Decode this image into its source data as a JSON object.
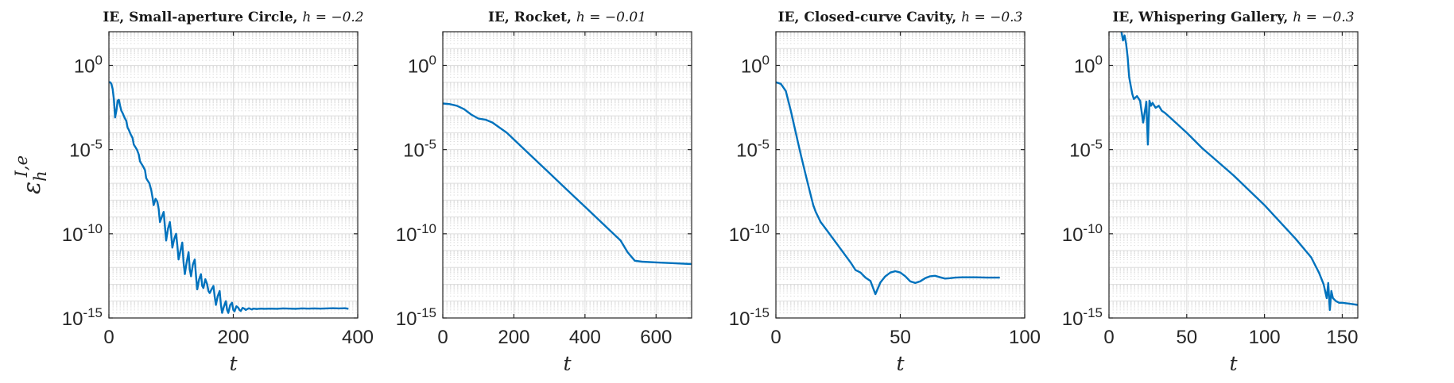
{
  "chart_data": [
    {
      "type": "line",
      "title": "IE, Small-aperture Circle, ",
      "title_math": "h = −0.2",
      "xlabel": "t",
      "ylabel": "ε",
      "ylabel_sup": "I,e",
      "ylabel_sub": "h",
      "yscale": "log",
      "grid": true,
      "xlim": [
        0,
        400
      ],
      "ylim": [
        1e-15,
        100
      ],
      "xticks": [
        0,
        200,
        400
      ],
      "xtick_labels": [
        "0",
        "200",
        "400"
      ],
      "yticks": [
        1,
        1e-05,
        1e-10,
        1e-15
      ],
      "ytick_labels": [
        {
          "base": "10",
          "exp": "0"
        },
        {
          "base": "10",
          "exp": "-5"
        },
        {
          "base": "10",
          "exp": "-10"
        },
        {
          "base": "10",
          "exp": "-15"
        }
      ],
      "series_color": "#0072bd",
      "series": [
        {
          "x": [
            0,
            2,
            4,
            6,
            8,
            10,
            12,
            14,
            16,
            18,
            20,
            22,
            25,
            28,
            30,
            32,
            35,
            38,
            40,
            42,
            45,
            48,
            50,
            52,
            55,
            58,
            60,
            62,
            65,
            68,
            70,
            72,
            75,
            78,
            80,
            82,
            85,
            88,
            90,
            92,
            95,
            98,
            100,
            102,
            105,
            108,
            110,
            112,
            115,
            118,
            120,
            122,
            125,
            128,
            130,
            132,
            135,
            138,
            140,
            142,
            145,
            148,
            150,
            152,
            155,
            158,
            160,
            162,
            165,
            168,
            170,
            172,
            175,
            178,
            180,
            182,
            185,
            188,
            190,
            192,
            195,
            198,
            200,
            202,
            205,
            208,
            210,
            212,
            215,
            218,
            220,
            222,
            225,
            228,
            230,
            232,
            235,
            238,
            240,
            245,
            250,
            260,
            270,
            280,
            290,
            300,
            310,
            320,
            330,
            340,
            350,
            360,
            370,
            380,
            385
          ],
          "y": [
            0.1,
            0.1,
            0.08,
            0.04,
            0.009,
            0.0008,
            0.002,
            0.008,
            0.009,
            0.004,
            0.002,
            0.0015,
            0.0008,
            0.0005,
            0.0002,
            0.00015,
            8e-05,
            5e-05,
            2e-05,
            1.5e-05,
            1e-05,
            5e-06,
            2e-06,
            1.5e-06,
            1e-06,
            6e-07,
            2e-07,
            1.5e-07,
            1e-07,
            4e-08,
            1.5e-08,
            5e-09,
            1.2e-08,
            8e-09,
            3e-09,
            5e-10,
            1e-09,
            2e-09,
            3e-10,
            4e-11,
            2e-10,
            5e-10,
            1e-10,
            1.5e-11,
            5e-11,
            1e-10,
            2e-11,
            3e-12,
            1e-11,
            3e-11,
            2e-12,
            4e-13,
            2e-12,
            8e-12,
            8e-13,
            3e-13,
            1.5e-12,
            3e-12,
            3e-13,
            5e-14,
            2e-13,
            4e-13,
            8e-14,
            6e-14,
            2e-13,
            1e-13,
            4e-14,
            3e-14,
            5e-14,
            8e-14,
            2e-14,
            6e-15,
            2e-14,
            4e-14,
            6e-15,
            2e-15,
            5e-15,
            1e-14,
            3e-15,
            2e-15,
            6e-15,
            8e-15,
            3e-15,
            2.5e-15,
            5e-15,
            4e-15,
            3e-15,
            2.6e-15,
            4e-15,
            3.5e-15,
            3e-15,
            3.3e-15,
            3.8e-15,
            3.4e-15,
            3.2e-15,
            3.6e-15,
            3.5e-15,
            3.4e-15,
            3.5e-15,
            3.6e-15,
            3.5e-15,
            3.6e-15,
            3.5e-15,
            3.7e-15,
            3.6e-15,
            3.5e-15,
            3.7e-15,
            3.6e-15,
            3.7e-15,
            3.6e-15,
            3.7e-15,
            3.8e-15,
            3.7e-15,
            3.8e-15,
            3.5e-15
          ]
        }
      ]
    },
    {
      "type": "line",
      "title": "IE, Rocket, ",
      "title_math": "h = −0.01",
      "xlabel": "t",
      "ylabel": "",
      "yscale": "log",
      "grid": true,
      "xlim": [
        0,
        700
      ],
      "ylim": [
        1e-15,
        100
      ],
      "xticks": [
        0,
        200,
        400,
        600
      ],
      "xtick_labels": [
        "0",
        "200",
        "400",
        "600"
      ],
      "yticks": [
        1,
        1e-05,
        1e-10,
        1e-15
      ],
      "ytick_labels": [
        {
          "base": "10",
          "exp": "0"
        },
        {
          "base": "10",
          "exp": "-5"
        },
        {
          "base": "10",
          "exp": "-10"
        },
        {
          "base": "10",
          "exp": "-15"
        }
      ],
      "series_color": "#0072bd",
      "series": [
        {
          "x": [
            0,
            20,
            40,
            60,
            80,
            100,
            120,
            140,
            160,
            180,
            200,
            250,
            300,
            350,
            400,
            450,
            500,
            520,
            540,
            560,
            600,
            650,
            700
          ],
          "y": [
            0.0055,
            0.005,
            0.004,
            0.0025,
            0.0012,
            0.0007,
            0.0006,
            0.0004,
            0.0002,
            0.0001,
            4e-05,
            4e-06,
            4e-07,
            4e-08,
            4e-09,
            4e-10,
            4e-11,
            8e-12,
            2.5e-12,
            2.2e-12,
            2e-12,
            1.8e-12,
            1.6e-12
          ]
        }
      ]
    },
    {
      "type": "line",
      "title": "IE, Closed-curve Cavity, ",
      "title_math": "h = −0.3",
      "xlabel": "t",
      "ylabel": "",
      "yscale": "log",
      "grid": true,
      "xlim": [
        0,
        100
      ],
      "ylim": [
        1e-15,
        100
      ],
      "xticks": [
        0,
        50,
        100
      ],
      "xtick_labels": [
        "0",
        "50",
        "100"
      ],
      "yticks": [
        1,
        1e-05,
        1e-10,
        1e-15
      ],
      "ytick_labels": [
        {
          "base": "10",
          "exp": "0"
        },
        {
          "base": "10",
          "exp": "-5"
        },
        {
          "base": "10",
          "exp": "-10"
        },
        {
          "base": "10",
          "exp": "-15"
        }
      ],
      "series_color": "#0072bd",
      "series": [
        {
          "x": [
            0,
            2,
            4,
            6,
            8,
            10,
            12,
            14,
            15,
            16,
            18,
            20,
            25,
            30,
            32,
            34,
            36,
            38,
            40,
            42,
            44,
            46,
            48,
            50,
            52,
            54,
            56,
            58,
            60,
            62,
            64,
            66,
            68,
            70,
            72,
            75,
            80,
            85,
            90
          ],
          "y": [
            0.1,
            0.08,
            0.03,
            0.002,
            0.0001,
            5e-06,
            3e-07,
            2e-08,
            5e-09,
            2e-09,
            5e-10,
            2e-10,
            2e-11,
            2e-12,
            7e-13,
            5e-13,
            2.5e-13,
            1.6e-13,
            2.6e-14,
            1.3e-13,
            3e-13,
            5e-13,
            6e-13,
            5e-13,
            3e-13,
            1.5e-13,
            1.2e-13,
            1.5e-13,
            2.3e-13,
            3e-13,
            3.2e-13,
            2.6e-13,
            2.2e-13,
            2.3e-13,
            2.5e-13,
            2.6e-13,
            2.6e-13,
            2.5e-13,
            2.5e-13
          ]
        }
      ]
    },
    {
      "type": "line",
      "title": "IE, Whispering Gallery, ",
      "title_math": "h = −0.3",
      "xlabel": "t",
      "ylabel": "",
      "yscale": "log",
      "grid": true,
      "xlim": [
        0,
        160
      ],
      "ylim": [
        1e-15,
        100
      ],
      "xticks": [
        0,
        50,
        100,
        150
      ],
      "xtick_labels": [
        "0",
        "50",
        "100",
        "150"
      ],
      "yticks": [
        1,
        1e-05,
        1e-10,
        1e-15
      ],
      "ytick_labels": [
        {
          "base": "10",
          "exp": "0"
        },
        {
          "base": "10",
          "exp": "-5"
        },
        {
          "base": "10",
          "exp": "-10"
        },
        {
          "base": "10",
          "exp": "-15"
        }
      ],
      "series_color": "#0072bd",
      "series": [
        {
          "x": [
            8,
            9,
            10,
            11,
            12,
            13,
            14,
            15,
            16,
            18,
            20,
            22,
            24,
            25,
            26,
            27,
            28,
            30,
            32,
            34,
            36,
            40,
            50,
            60,
            80,
            100,
            120,
            130,
            135,
            138,
            140,
            141,
            142,
            143,
            144,
            146,
            148,
            150,
            155,
            160
          ],
          "y": [
            100,
            30,
            60,
            20,
            3,
            0.2,
            0.06,
            0.02,
            0.01,
            0.015,
            0.008,
            0.0004,
            0.007,
            2e-05,
            0.008,
            0.004,
            0.006,
            0.003,
            0.004,
            0.002,
            0.0015,
            0.0007,
            0.0001,
            1.2e-05,
            3e-07,
            5e-09,
            5e-11,
            4e-12,
            5e-13,
            1e-13,
            1.5e-14,
            1.2e-13,
            3e-15,
            4e-14,
            1.5e-14,
            1e-14,
            8e-15,
            8e-15,
            7e-15,
            6e-15
          ]
        }
      ]
    }
  ]
}
